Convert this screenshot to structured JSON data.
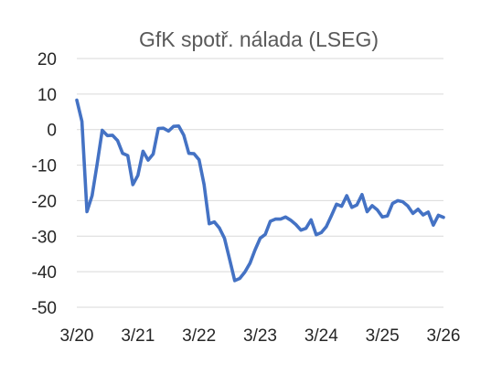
{
  "chart_data": {
    "type": "line",
    "title": "GfK spotř. nálada (LSEG)",
    "xlabel": "",
    "ylabel": "",
    "x_tick_labels": [
      "3/20",
      "3/21",
      "3/22",
      "3/23",
      "3/24",
      "3/25",
      "3/26"
    ],
    "y_ticks": [
      20,
      10,
      0,
      -10,
      -20,
      -30,
      -40,
      -50
    ],
    "ylim": [
      -50,
      20
    ],
    "grid": "horizontal",
    "legend": "none",
    "series": [
      {
        "color": "#4472C4",
        "x": [
          "2020-03",
          "2020-04",
          "2020-05",
          "2020-06",
          "2020-07",
          "2020-08",
          "2020-09",
          "2020-10",
          "2020-11",
          "2020-12",
          "2021-01",
          "2021-02",
          "2021-03",
          "2021-04",
          "2021-05",
          "2021-06",
          "2021-07",
          "2021-08",
          "2021-09",
          "2021-10",
          "2021-11",
          "2021-12",
          "2022-01",
          "2022-02",
          "2022-03",
          "2022-04",
          "2022-05",
          "2022-06",
          "2022-07",
          "2022-08",
          "2022-09",
          "2022-10",
          "2022-11",
          "2022-12",
          "2023-01",
          "2023-02",
          "2023-03",
          "2023-04",
          "2023-05",
          "2023-06",
          "2023-07",
          "2023-08",
          "2023-09",
          "2023-10",
          "2023-11",
          "2023-12",
          "2024-01",
          "2024-02",
          "2024-03",
          "2024-04",
          "2024-05",
          "2024-06",
          "2024-07",
          "2024-08",
          "2024-09",
          "2024-10",
          "2024-11",
          "2024-12",
          "2025-01",
          "2025-02",
          "2025-03",
          "2025-04",
          "2025-05",
          "2025-06",
          "2025-07",
          "2025-08",
          "2025-09",
          "2025-10",
          "2025-11",
          "2025-12",
          "2026-01",
          "2026-02",
          "2026-03"
        ],
        "values": [
          8.3,
          2.3,
          -23.1,
          -18.6,
          -9.6,
          -0.2,
          -1.7,
          -1.6,
          -3.1,
          -6.7,
          -7.3,
          -15.5,
          -12.9,
          -6.1,
          -8.6,
          -6.9,
          0.3,
          0.4,
          -0.4,
          0.9,
          1.0,
          -1.6,
          -6.7,
          -6.8,
          -8.5,
          -15.5,
          -26.5,
          -26.0,
          -27.7,
          -30.6,
          -36.5,
          -42.5,
          -41.9,
          -40.1,
          -37.6,
          -33.9,
          -30.6,
          -29.5,
          -25.8,
          -25.2,
          -25.2,
          -24.6,
          -25.5,
          -26.7,
          -28.3,
          -27.8,
          -25.4,
          -29.6,
          -29.0,
          -27.3,
          -24.2,
          -21.0,
          -21.6,
          -18.6,
          -21.9,
          -21.2,
          -18.3,
          -23.1,
          -21.4,
          -22.6,
          -24.6,
          -24.3,
          -20.8,
          -20.0,
          -20.3,
          -21.5,
          -23.6,
          -22.4,
          -24.0,
          -23.2,
          -26.9,
          -24.1,
          -24.7
        ]
      }
    ]
  }
}
